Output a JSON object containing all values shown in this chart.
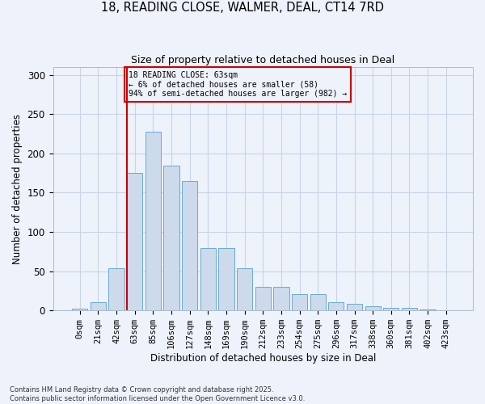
{
  "title_line1": "18, READING CLOSE, WALMER, DEAL, CT14 7RD",
  "title_line2": "Size of property relative to detached houses in Deal",
  "xlabel": "Distribution of detached houses by size in Deal",
  "ylabel": "Number of detached properties",
  "bar_labels": [
    "0sqm",
    "21sqm",
    "42sqm",
    "63sqm",
    "85sqm",
    "106sqm",
    "127sqm",
    "148sqm",
    "169sqm",
    "190sqm",
    "212sqm",
    "233sqm",
    "254sqm",
    "275sqm",
    "296sqm",
    "317sqm",
    "338sqm",
    "360sqm",
    "381sqm",
    "402sqm",
    "423sqm"
  ],
  "bar_values": [
    2,
    11,
    54,
    175,
    228,
    184,
    165,
    80,
    80,
    54,
    30,
    30,
    21,
    21,
    11,
    8,
    5,
    3,
    3,
    1,
    0
  ],
  "bar_color": "#ccdaec",
  "bar_edge_color": "#6aaad4",
  "grid_color": "#c8d4e8",
  "background_color": "#eef2fa",
  "vline_color": "#cc0000",
  "annotation_text": "18 READING CLOSE: 63sqm\n← 6% of detached houses are smaller (58)\n94% of semi-detached houses are larger (982) →",
  "annotation_box_color": "#cc0000",
  "ylim": [
    0,
    310
  ],
  "yticks": [
    0,
    50,
    100,
    150,
    200,
    250,
    300
  ],
  "footnote": "Contains HM Land Registry data © Crown copyright and database right 2025.\nContains public sector information licensed under the Open Government Licence v3.0."
}
